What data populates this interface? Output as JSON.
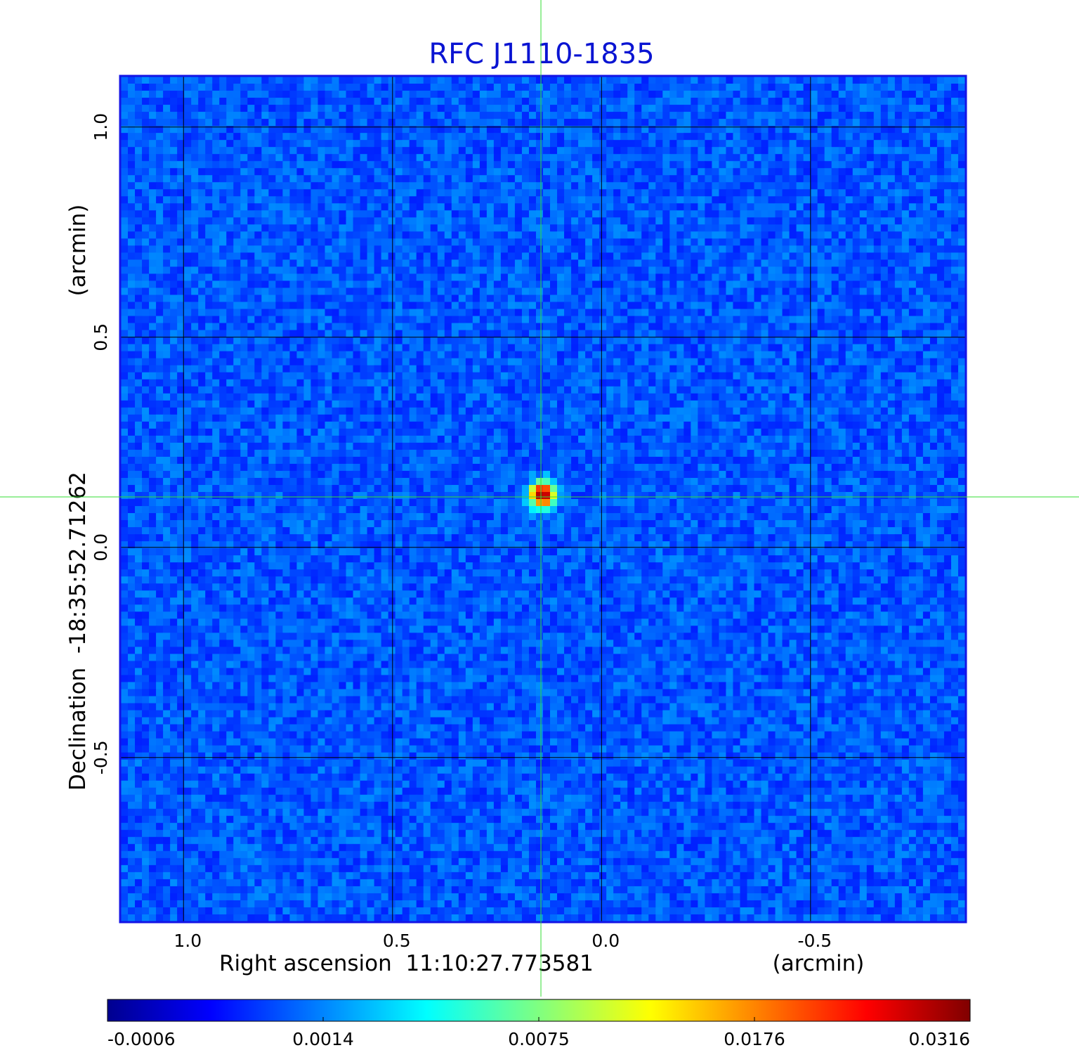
{
  "chart_data": {
    "type": "heatmap",
    "title": "RFC J1110-1835",
    "xlabel": "Right ascension  11:10:27.773581",
    "xunit": "(arcmin)",
    "ylabel": "Declination  -18:35:52.71262",
    "yunit": "(arcmin)",
    "xlim": [
      1.15,
      -0.87
    ],
    "ylim": [
      -0.89,
      1.12
    ],
    "xticks": [
      1.0,
      0.5,
      0.0,
      -0.5
    ],
    "xtick_labels": [
      "1.0",
      "0.5",
      "0.0",
      "-0.5"
    ],
    "yticks": [
      1.0,
      0.5,
      0.0,
      -0.5
    ],
    "ytick_labels": [
      "1.0",
      "0.5",
      "0.0",
      "-0.5"
    ],
    "grid": true,
    "crosshair": {
      "x": 0.145,
      "y": 0.12,
      "color": "#33dd33"
    },
    "source": {
      "x": 0.14,
      "y": 0.125,
      "peak": 0.0316
    },
    "colormap": "jet",
    "colorbar": {
      "min": -0.0006,
      "max": 0.0316,
      "tick_labels": [
        "-0.0006",
        "0.0014",
        "0.0075",
        "0.0176",
        "0.0316"
      ]
    },
    "colors": {
      "title": "#0a14d2",
      "frame": "#1414e6",
      "background_noise": "#1f4fe8"
    }
  }
}
